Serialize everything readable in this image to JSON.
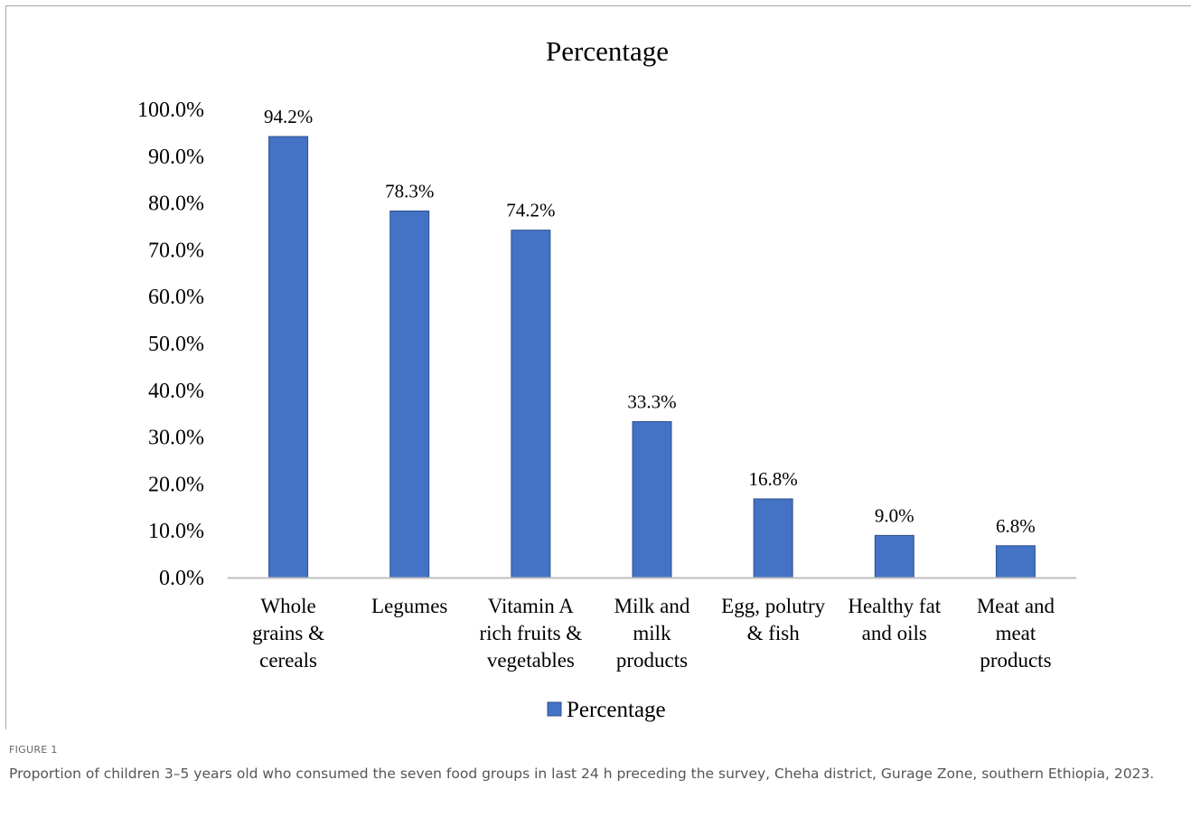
{
  "figure": {
    "label": "FIGURE 1",
    "caption": "Proportion of children 3–5 years old who consumed the seven food groups in last 24 h preceding the survey, Cheha district, Gurage Zone, southern Ethiopia, 2023."
  },
  "chart_data": {
    "type": "bar",
    "title": "Percentage",
    "xlabel": "",
    "ylabel": "",
    "ylim": [
      0,
      100
    ],
    "yticks": [
      "0.0%",
      "10.0%",
      "20.0%",
      "30.0%",
      "40.0%",
      "50.0%",
      "60.0%",
      "70.0%",
      "80.0%",
      "90.0%",
      "100.0%"
    ],
    "categories": [
      [
        "Whole",
        "grains &",
        "cereals"
      ],
      [
        "Legumes"
      ],
      [
        "Vitamin A",
        "rich fruits &",
        "vegetables"
      ],
      [
        "Milk and",
        "milk",
        "products"
      ],
      [
        "Egg, polutry",
        "& fish"
      ],
      [
        "Healthy fat",
        "and oils"
      ],
      [
        "Meat and",
        "meat",
        "products"
      ]
    ],
    "series": [
      {
        "name": "Percentage",
        "values": [
          94.2,
          78.3,
          74.2,
          33.3,
          16.8,
          9.0,
          6.8
        ],
        "labels": [
          "94.2%",
          "78.3%",
          "74.2%",
          "33.3%",
          "16.8%",
          "9.0%",
          "6.8%"
        ]
      }
    ],
    "legend": {
      "position": "bottom",
      "entries": [
        "Percentage"
      ]
    },
    "grid": false,
    "colors": {
      "bar": "#4472c4",
      "bar_edge": "#2f528f",
      "axis": "#bfbfbf"
    }
  }
}
